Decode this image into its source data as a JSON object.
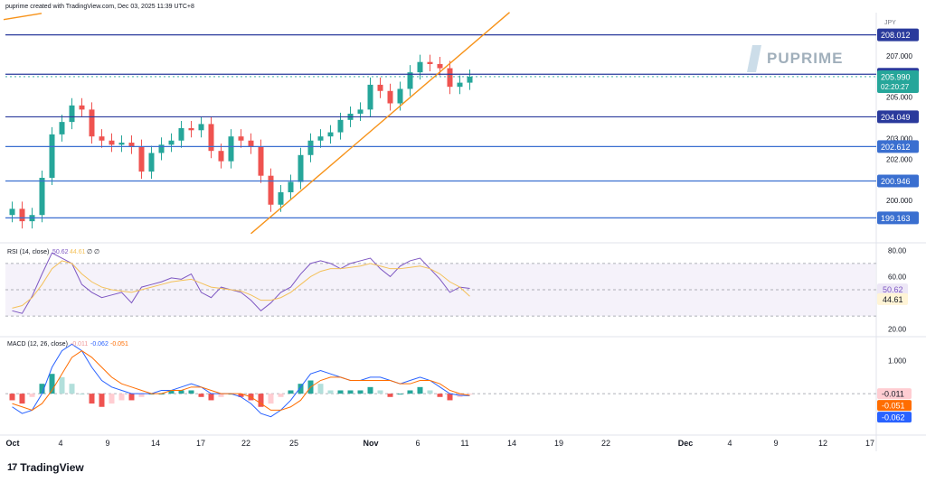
{
  "header": {
    "created_text": "puprime created with TradingView.com, Dec 03, 2025 11:39 UTC+8"
  },
  "watermark": {
    "text": "PUPRIME"
  },
  "brand": {
    "name": "TradingView",
    "logo_glyph": "17"
  },
  "colors": {
    "up": "#26a69a",
    "down": "#ef5350",
    "hline": "#2a3a9c",
    "hline_light": "#3a6fd0",
    "trend": "#f7931a",
    "rsi": "#7e57c2",
    "rsi_ma": "#f4c15a",
    "macd": "#2962ff",
    "signal": "#ff6d00"
  },
  "chart_data": [
    {
      "type": "line",
      "title": "",
      "currency": "JPY",
      "ylim": [
        198,
        209
      ],
      "y_ticks": [
        200,
        202,
        203,
        205,
        207
      ],
      "y_tick_labels": [
        "200.000",
        "202.000",
        "203.000",
        "205.000",
        "207.000"
      ],
      "x_tick_labels": [
        "Oct",
        "4",
        "9",
        "14",
        "17",
        "22",
        "25",
        "Nov",
        "6",
        "11",
        "14",
        "19",
        "22",
        "Dec",
        "4",
        "9",
        "12",
        "17"
      ],
      "close_path": [
        [
          "Sep 30",
          199.6
        ],
        [
          "Oct 1",
          199.0
        ],
        [
          "Oct 2",
          199.3
        ],
        [
          "Oct 3",
          201.1
        ],
        [
          "Oct 6",
          203.2
        ],
        [
          "Oct 7",
          203.8
        ],
        [
          "Oct 8",
          204.6
        ],
        [
          "Oct 9",
          204.4
        ],
        [
          "Oct 10",
          203.1
        ],
        [
          "Oct 13",
          202.9
        ],
        [
          "Oct 14",
          202.7
        ],
        [
          "Oct 15",
          202.8
        ],
        [
          "Oct 16",
          202.6
        ],
        [
          "Oct 17",
          201.4
        ],
        [
          "Oct 20",
          202.3
        ],
        [
          "Oct 21",
          202.7
        ],
        [
          "Oct 22",
          202.9
        ],
        [
          "Oct 23",
          203.5
        ],
        [
          "Oct 24",
          203.4
        ],
        [
          "Oct 27",
          203.7
        ],
        [
          "Oct 28",
          202.4
        ],
        [
          "Oct 29",
          201.9
        ],
        [
          "Oct 30",
          203.1
        ],
        [
          "Oct 31",
          202.9
        ],
        [
          "Nov 3",
          202.6
        ],
        [
          "Nov 4",
          201.2
        ],
        [
          "Nov 5",
          199.8
        ],
        [
          "Nov 6",
          200.4
        ],
        [
          "Nov 7",
          200.9
        ],
        [
          "Nov 10",
          202.2
        ],
        [
          "Nov 11",
          202.9
        ],
        [
          "Nov 12",
          203.1
        ],
        [
          "Nov 13",
          203.3
        ],
        [
          "Nov 14",
          203.9
        ],
        [
          "Nov 17",
          204.2
        ],
        [
          "Nov 18",
          204.4
        ],
        [
          "Nov 19",
          205.6
        ],
        [
          "Nov 20",
          205.3
        ],
        [
          "Nov 21",
          204.7
        ],
        [
          "Nov 24",
          205.4
        ],
        [
          "Nov 25",
          206.2
        ],
        [
          "Nov 26",
          206.7
        ],
        [
          "Nov 27",
          206.6
        ],
        [
          "Nov 28",
          206.4
        ],
        [
          "Dec 1",
          205.5
        ],
        [
          "Dec 2",
          205.7
        ],
        [
          "Dec 3",
          205.99
        ]
      ],
      "horizontal_levels": [
        {
          "value": 208.012,
          "label": "208.012"
        },
        {
          "value": 206.107,
          "label": "206.107"
        },
        {
          "value": 204.049,
          "label": "204.049"
        },
        {
          "value": 202.612,
          "label": "202.612"
        },
        {
          "value": 200.946,
          "label": "200.946"
        },
        {
          "value": 199.163,
          "label": "199.163"
        }
      ],
      "current_price": {
        "value": 205.99,
        "label": "205.990",
        "countdown": "02:20:27"
      },
      "trendlines": [
        {
          "from": [
            "Nov 3",
            198.4
          ],
          "to": [
            "Dec 9",
            209.1
          ]
        }
      ]
    },
    {
      "type": "line",
      "title": "RSI (14, close)",
      "legend_values": [
        "50.62",
        "44.61",
        "∅",
        "∅"
      ],
      "ylim": [
        15,
        85
      ],
      "y_tick_labels": [
        "80.00",
        "60.00",
        "20.00"
      ],
      "band": [
        30,
        70
      ],
      "series": [
        {
          "name": "RSI",
          "values": [
            34,
            32,
            45,
            62,
            78,
            74,
            70,
            54,
            48,
            44,
            46,
            48,
            40,
            52,
            54,
            56,
            59,
            58,
            62,
            48,
            44,
            52,
            50,
            48,
            42,
            34,
            40,
            48,
            52,
            62,
            70,
            72,
            70,
            66,
            70,
            72,
            74,
            66,
            60,
            68,
            72,
            74,
            66,
            58,
            48,
            52,
            51
          ]
        },
        {
          "name": "MA",
          "values": [
            36,
            38,
            44,
            54,
            66,
            72,
            70,
            62,
            56,
            52,
            50,
            49,
            48,
            50,
            52,
            54,
            56,
            57,
            58,
            55,
            52,
            51,
            50,
            49,
            46,
            42,
            42,
            44,
            48,
            54,
            60,
            64,
            66,
            66,
            67,
            68,
            70,
            68,
            66,
            66,
            67,
            68,
            66,
            62,
            56,
            52,
            45
          ]
        }
      ],
      "current_values": [
        {
          "value": 50.62,
          "label": "50.62"
        },
        {
          "value": 44.61,
          "label": "44.61"
        }
      ]
    },
    {
      "type": "bar",
      "title": "MACD (12, 26, close)",
      "legend_values": [
        "-0.011",
        "-0.062",
        "-0.051"
      ],
      "ylim": [
        -1.2,
        1.7
      ],
      "y_tick_labels": [
        "1.000"
      ],
      "series": [
        {
          "name": "Histogram",
          "values": [
            -0.2,
            -0.3,
            -0.1,
            0.3,
            0.6,
            0.5,
            0.3,
            0.0,
            -0.3,
            -0.4,
            -0.3,
            -0.2,
            -0.2,
            -0.1,
            0.0,
            0.0,
            0.1,
            0.1,
            0.1,
            -0.1,
            -0.2,
            -0.1,
            0.0,
            -0.1,
            -0.2,
            -0.4,
            -0.3,
            -0.1,
            0.1,
            0.3,
            0.4,
            0.3,
            0.1,
            0.1,
            0.1,
            0.1,
            0.2,
            0.1,
            -0.1,
            0.0,
            0.1,
            0.2,
            0.1,
            -0.1,
            -0.2,
            -0.1,
            -0.011
          ]
        },
        {
          "name": "MACD",
          "values": [
            -0.4,
            -0.6,
            -0.5,
            0.0,
            0.8,
            1.3,
            1.5,
            1.3,
            0.8,
            0.4,
            0.2,
            0.1,
            0.0,
            0.0,
            0.0,
            0.1,
            0.1,
            0.2,
            0.3,
            0.2,
            0.0,
            0.0,
            0.0,
            -0.1,
            -0.3,
            -0.6,
            -0.7,
            -0.5,
            -0.2,
            0.2,
            0.6,
            0.7,
            0.6,
            0.5,
            0.4,
            0.4,
            0.5,
            0.5,
            0.4,
            0.3,
            0.4,
            0.5,
            0.4,
            0.2,
            0.0,
            -0.05,
            -0.062
          ]
        },
        {
          "name": "Signal",
          "values": [
            -0.3,
            -0.4,
            -0.5,
            -0.3,
            0.1,
            0.6,
            1.1,
            1.3,
            1.1,
            0.8,
            0.5,
            0.3,
            0.2,
            0.1,
            0.0,
            0.0,
            0.1,
            0.1,
            0.2,
            0.2,
            0.1,
            0.0,
            0.0,
            0.0,
            -0.1,
            -0.3,
            -0.5,
            -0.5,
            -0.4,
            -0.2,
            0.2,
            0.4,
            0.5,
            0.5,
            0.4,
            0.4,
            0.4,
            0.4,
            0.4,
            0.3,
            0.3,
            0.4,
            0.4,
            0.3,
            0.1,
            0.0,
            -0.051
          ]
        }
      ],
      "current_values": [
        {
          "value": -0.011,
          "label": "-0.011"
        },
        {
          "value": -0.051,
          "label": "-0.051"
        },
        {
          "value": -0.062,
          "label": "-0.062"
        }
      ]
    }
  ]
}
